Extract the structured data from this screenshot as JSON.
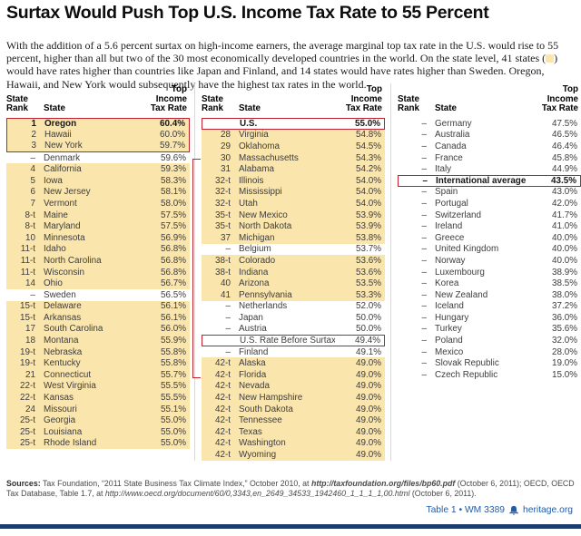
{
  "colors": {
    "hl": "#fae5ac",
    "red": "#c0222e",
    "blue": "#1f5ca9",
    "navy": "#1d3c6e"
  },
  "title": "Surtax Would Push Top U.S. Income Tax Rate to 55 Percent",
  "intro": {
    "before_swatch": "With the addition of a 5.6 percent surtax on high-income earners, the average marginal top tax rate in the U.S. would rise to 55 percent, higher than all but two of the 30 most economically developed countries in the world. On the state level, 41 states (",
    "after_swatch": ") would have rates higher than countries like Japan and Finland, and 14 states would have rates higher than Sweden. Oregon, Hawaii, and New York would subsequently have the highest tax rates in the world."
  },
  "chart_data": {
    "type": "table",
    "header": {
      "rank": "State\nRank",
      "state": "State",
      "rate": "Top\nIncome\nTax Rate"
    },
    "notes": "bg: y=yellow highlighted state row, w=white (countries/special rows); b=bold; f=red frame segment",
    "tables": [
      {
        "rows": [
          {
            "rank": "1",
            "name": "Oregon",
            "rate": "60.4%",
            "bg": "y",
            "b": 1,
            "f": "start"
          },
          {
            "rank": "2",
            "name": "Hawaii",
            "rate": "60.0%",
            "bg": "y",
            "b": 0,
            "f": "mid"
          },
          {
            "rank": "3",
            "name": "New York",
            "rate": "59.7%",
            "bg": "y",
            "b": 0,
            "f": "end"
          },
          {
            "rank": "–",
            "name": "Denmark",
            "rate": "59.6%",
            "bg": "w",
            "b": 0,
            "f": ""
          },
          {
            "rank": "4",
            "name": "California",
            "rate": "59.3%",
            "bg": "y",
            "b": 0,
            "f": ""
          },
          {
            "rank": "5",
            "name": "Iowa",
            "rate": "58.3%",
            "bg": "y",
            "b": 0,
            "f": ""
          },
          {
            "rank": "6",
            "name": "New Jersey",
            "rate": "58.1%",
            "bg": "y",
            "b": 0,
            "f": ""
          },
          {
            "rank": "7",
            "name": "Vermont",
            "rate": "58.0%",
            "bg": "y",
            "b": 0,
            "f": ""
          },
          {
            "rank": "8-t",
            "name": "Maine",
            "rate": "57.5%",
            "bg": "y",
            "b": 0,
            "f": ""
          },
          {
            "rank": "8-t",
            "name": "Maryland",
            "rate": "57.5%",
            "bg": "y",
            "b": 0,
            "f": ""
          },
          {
            "rank": "10",
            "name": "Minnesota",
            "rate": "56.9%",
            "bg": "y",
            "b": 0,
            "f": ""
          },
          {
            "rank": "11-t",
            "name": "Idaho",
            "rate": "56.8%",
            "bg": "y",
            "b": 0,
            "f": ""
          },
          {
            "rank": "11-t",
            "name": "North Carolina",
            "rate": "56.8%",
            "bg": "y",
            "b": 0,
            "f": ""
          },
          {
            "rank": "11-t",
            "name": "Wisconsin",
            "rate": "56.8%",
            "bg": "y",
            "b": 0,
            "f": ""
          },
          {
            "rank": "14",
            "name": "Ohio",
            "rate": "56.7%",
            "bg": "y",
            "b": 0,
            "f": ""
          },
          {
            "rank": "–",
            "name": "Sweden",
            "rate": "56.5%",
            "bg": "w",
            "b": 0,
            "f": ""
          },
          {
            "rank": "15-t",
            "name": "Delaware",
            "rate": "56.1%",
            "bg": "y",
            "b": 0,
            "f": ""
          },
          {
            "rank": "15-t",
            "name": "Arkansas",
            "rate": "56.1%",
            "bg": "y",
            "b": 0,
            "f": ""
          },
          {
            "rank": "17",
            "name": "South Carolina",
            "rate": "56.0%",
            "bg": "y",
            "b": 0,
            "f": ""
          },
          {
            "rank": "18",
            "name": "Montana",
            "rate": "55.9%",
            "bg": "y",
            "b": 0,
            "f": ""
          },
          {
            "rank": "19-t",
            "name": "Nebraska",
            "rate": "55.8%",
            "bg": "y",
            "b": 0,
            "f": ""
          },
          {
            "rank": "19-t",
            "name": "Kentucky",
            "rate": "55.8%",
            "bg": "y",
            "b": 0,
            "f": ""
          },
          {
            "rank": "21",
            "name": "Connecticut",
            "rate": "55.7%",
            "bg": "y",
            "b": 0,
            "f": ""
          },
          {
            "rank": "22-t",
            "name": "West Virginia",
            "rate": "55.5%",
            "bg": "y",
            "b": 0,
            "f": ""
          },
          {
            "rank": "22-t",
            "name": "Kansas",
            "rate": "55.5%",
            "bg": "y",
            "b": 0,
            "f": ""
          },
          {
            "rank": "24",
            "name": "Missouri",
            "rate": "55.1%",
            "bg": "y",
            "b": 0,
            "f": ""
          },
          {
            "rank": "25-t",
            "name": "Georgia",
            "rate": "55.0%",
            "bg": "y",
            "b": 0,
            "f": ""
          },
          {
            "rank": "25-t",
            "name": "Louisiana",
            "rate": "55.0%",
            "bg": "y",
            "b": 0,
            "f": ""
          },
          {
            "rank": "25-t",
            "name": "Rhode Island",
            "rate": "55.0%",
            "bg": "y",
            "b": 0,
            "f": ""
          }
        ]
      },
      {
        "bracket": true,
        "rows": [
          {
            "rank": "",
            "name": "U.S.",
            "rate": "55.0%",
            "bg": "w",
            "b": 1,
            "f": "solo"
          },
          {
            "rank": "28",
            "name": "Virginia",
            "rate": "54.8%",
            "bg": "y",
            "b": 0,
            "f": ""
          },
          {
            "rank": "29",
            "name": "Oklahoma",
            "rate": "54.5%",
            "bg": "y",
            "b": 0,
            "f": ""
          },
          {
            "rank": "30",
            "name": "Massachusetts",
            "rate": "54.3%",
            "bg": "y",
            "b": 0,
            "f": ""
          },
          {
            "rank": "31",
            "name": "Alabama",
            "rate": "54.2%",
            "bg": "y",
            "b": 0,
            "f": ""
          },
          {
            "rank": "32-t",
            "name": "Illinois",
            "rate": "54.0%",
            "bg": "y",
            "b": 0,
            "f": ""
          },
          {
            "rank": "32-t",
            "name": "Mississippi",
            "rate": "54.0%",
            "bg": "y",
            "b": 0,
            "f": ""
          },
          {
            "rank": "32-t",
            "name": "Utah",
            "rate": "54.0%",
            "bg": "y",
            "b": 0,
            "f": ""
          },
          {
            "rank": "35-t",
            "name": "New Mexico",
            "rate": "53.9%",
            "bg": "y",
            "b": 0,
            "f": ""
          },
          {
            "rank": "35-t",
            "name": "North Dakota",
            "rate": "53.9%",
            "bg": "y",
            "b": 0,
            "f": ""
          },
          {
            "rank": "37",
            "name": "Michigan",
            "rate": "53.8%",
            "bg": "y",
            "b": 0,
            "f": ""
          },
          {
            "rank": "–",
            "name": "Belgium",
            "rate": "53.7%",
            "bg": "w",
            "b": 0,
            "f": ""
          },
          {
            "rank": "38-t",
            "name": "Colorado",
            "rate": "53.6%",
            "bg": "y",
            "b": 0,
            "f": ""
          },
          {
            "rank": "38-t",
            "name": "Indiana",
            "rate": "53.6%",
            "bg": "y",
            "b": 0,
            "f": ""
          },
          {
            "rank": "40",
            "name": "Arizona",
            "rate": "53.5%",
            "bg": "y",
            "b": 0,
            "f": ""
          },
          {
            "rank": "41",
            "name": "Pennsylvania",
            "rate": "53.3%",
            "bg": "y",
            "b": 0,
            "f": ""
          },
          {
            "rank": "–",
            "name": "Netherlands",
            "rate": "52.0%",
            "bg": "w",
            "b": 0,
            "f": ""
          },
          {
            "rank": "–",
            "name": "Japan",
            "rate": "50.0%",
            "bg": "w",
            "b": 0,
            "f": ""
          },
          {
            "rank": "–",
            "name": "Austria",
            "rate": "50.0%",
            "bg": "w",
            "b": 0,
            "f": ""
          },
          {
            "rank": "",
            "name": "U.S. Rate Before Surtax",
            "rate": "49.4%",
            "bg": "w",
            "b": 0,
            "f": "solo"
          },
          {
            "rank": "–",
            "name": "Finland",
            "rate": "49.1%",
            "bg": "w",
            "b": 0,
            "f": ""
          },
          {
            "rank": "42-t",
            "name": "Alaska",
            "rate": "49.0%",
            "bg": "y",
            "b": 0,
            "f": ""
          },
          {
            "rank": "42-t",
            "name": "Florida",
            "rate": "49.0%",
            "bg": "y",
            "b": 0,
            "f": ""
          },
          {
            "rank": "42-t",
            "name": "Nevada",
            "rate": "49.0%",
            "bg": "y",
            "b": 0,
            "f": ""
          },
          {
            "rank": "42-t",
            "name": "New Hampshire",
            "rate": "49.0%",
            "bg": "y",
            "b": 0,
            "f": ""
          },
          {
            "rank": "42-t",
            "name": "South Dakota",
            "rate": "49.0%",
            "bg": "y",
            "b": 0,
            "f": ""
          },
          {
            "rank": "42-t",
            "name": "Tennessee",
            "rate": "49.0%",
            "bg": "y",
            "b": 0,
            "f": ""
          },
          {
            "rank": "42-t",
            "name": "Texas",
            "rate": "49.0%",
            "bg": "y",
            "b": 0,
            "f": ""
          },
          {
            "rank": "42-t",
            "name": "Washington",
            "rate": "49.0%",
            "bg": "y",
            "b": 0,
            "f": ""
          },
          {
            "rank": "42-t",
            "name": "Wyoming",
            "rate": "49.0%",
            "bg": "y",
            "b": 0,
            "f": ""
          }
        ]
      },
      {
        "rows": [
          {
            "rank": "–",
            "name": "Germany",
            "rate": "47.5%",
            "bg": "w",
            "b": 0,
            "f": ""
          },
          {
            "rank": "–",
            "name": "Australia",
            "rate": "46.5%",
            "bg": "w",
            "b": 0,
            "f": ""
          },
          {
            "rank": "–",
            "name": "Canada",
            "rate": "46.4%",
            "bg": "w",
            "b": 0,
            "f": ""
          },
          {
            "rank": "–",
            "name": "France",
            "rate": "45.8%",
            "bg": "w",
            "b": 0,
            "f": ""
          },
          {
            "rank": "–",
            "name": "Italy",
            "rate": "44.9%",
            "bg": "w",
            "b": 0,
            "f": ""
          },
          {
            "rank": "–",
            "name": "International average",
            "rate": "43.5%",
            "bg": "w",
            "b": 1,
            "f": "solo"
          },
          {
            "rank": "–",
            "name": "Spain",
            "rate": "43.0%",
            "bg": "w",
            "b": 0,
            "f": ""
          },
          {
            "rank": "–",
            "name": "Portugal",
            "rate": "42.0%",
            "bg": "w",
            "b": 0,
            "f": ""
          },
          {
            "rank": "–",
            "name": "Switzerland",
            "rate": "41.7%",
            "bg": "w",
            "b": 0,
            "f": ""
          },
          {
            "rank": "–",
            "name": "Ireland",
            "rate": "41.0%",
            "bg": "w",
            "b": 0,
            "f": ""
          },
          {
            "rank": "–",
            "name": "Greece",
            "rate": "40.0%",
            "bg": "w",
            "b": 0,
            "f": ""
          },
          {
            "rank": "–",
            "name": "United Kingdom",
            "rate": "40.0%",
            "bg": "w",
            "b": 0,
            "f": ""
          },
          {
            "rank": "–",
            "name": "Norway",
            "rate": "40.0%",
            "bg": "w",
            "b": 0,
            "f": ""
          },
          {
            "rank": "–",
            "name": "Luxembourg",
            "rate": "38.9%",
            "bg": "w",
            "b": 0,
            "f": ""
          },
          {
            "rank": "–",
            "name": "Korea",
            "rate": "38.5%",
            "bg": "w",
            "b": 0,
            "f": ""
          },
          {
            "rank": "–",
            "name": "New Zealand",
            "rate": "38.0%",
            "bg": "w",
            "b": 0,
            "f": ""
          },
          {
            "rank": "–",
            "name": "Iceland",
            "rate": "37.2%",
            "bg": "w",
            "b": 0,
            "f": ""
          },
          {
            "rank": "–",
            "name": "Hungary",
            "rate": "36.0%",
            "bg": "w",
            "b": 0,
            "f": ""
          },
          {
            "rank": "–",
            "name": "Turkey",
            "rate": "35.6%",
            "bg": "w",
            "b": 0,
            "f": ""
          },
          {
            "rank": "–",
            "name": "Poland",
            "rate": "32.0%",
            "bg": "w",
            "b": 0,
            "f": ""
          },
          {
            "rank": "–",
            "name": "Mexico",
            "rate": "28.0%",
            "bg": "w",
            "b": 0,
            "f": ""
          },
          {
            "rank": "–",
            "name": "Slovak Republic",
            "rate": "19.0%",
            "bg": "w",
            "b": 0,
            "f": ""
          },
          {
            "rank": "–",
            "name": "Czech Republic",
            "rate": "15.0%",
            "bg": "w",
            "b": 0,
            "f": ""
          }
        ]
      }
    ]
  },
  "footer": {
    "sources_label": "Sources:",
    "sources_1": " Tax Foundation, “2011 State Business Tax Climate Index,” October 2010, at ",
    "sources_url1": "http://taxfoundation.org/files/bp60.pdf",
    "sources_2": " (October 6, 2011); OECD, OECD Tax Database, Table 1.7, at ",
    "sources_url2": "http://www.oecd.org/document/60/0,3343,en_2649_34533_1942460_1_1_1_1,00.html",
    "sources_3": " (October 6, 2011).",
    "table_ref": "Table 1 • WM 3389",
    "site": "heritage.org"
  }
}
